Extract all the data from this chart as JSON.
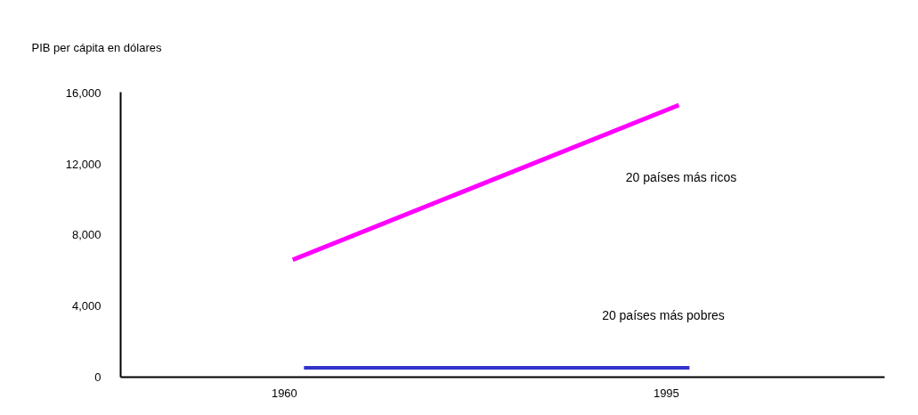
{
  "chart_data": {
    "type": "line",
    "ylabel": "PIB per cápita en dólares",
    "series": [
      {
        "color": "#ff00ff",
        "x": [
          1961,
          1996
        ],
        "values": [
          6650,
          15300
        ]
      },
      {
        "color": "#3333cc",
        "x": [
          1962,
          1997
        ],
        "values": [
          500,
          500
        ]
      }
    ],
    "annotations": [
      "20 países más ricos",
      "20 países más pobres"
    ],
    "xlim": [
      1945,
      2015
    ],
    "xticks": [
      1960,
      1995
    ],
    "ylim": [
      0,
      16100
    ],
    "yticks": [
      {
        "value": 0,
        "label": "0"
      },
      {
        "value": 4000,
        "label": "4,000"
      },
      {
        "value": 8000,
        "label": "8,000"
      },
      {
        "value": 12000,
        "label": "12,000"
      },
      {
        "value": 16000,
        "label": "16,000"
      }
    ],
    "grid": false,
    "marker": "none",
    "line_style": "solid"
  }
}
